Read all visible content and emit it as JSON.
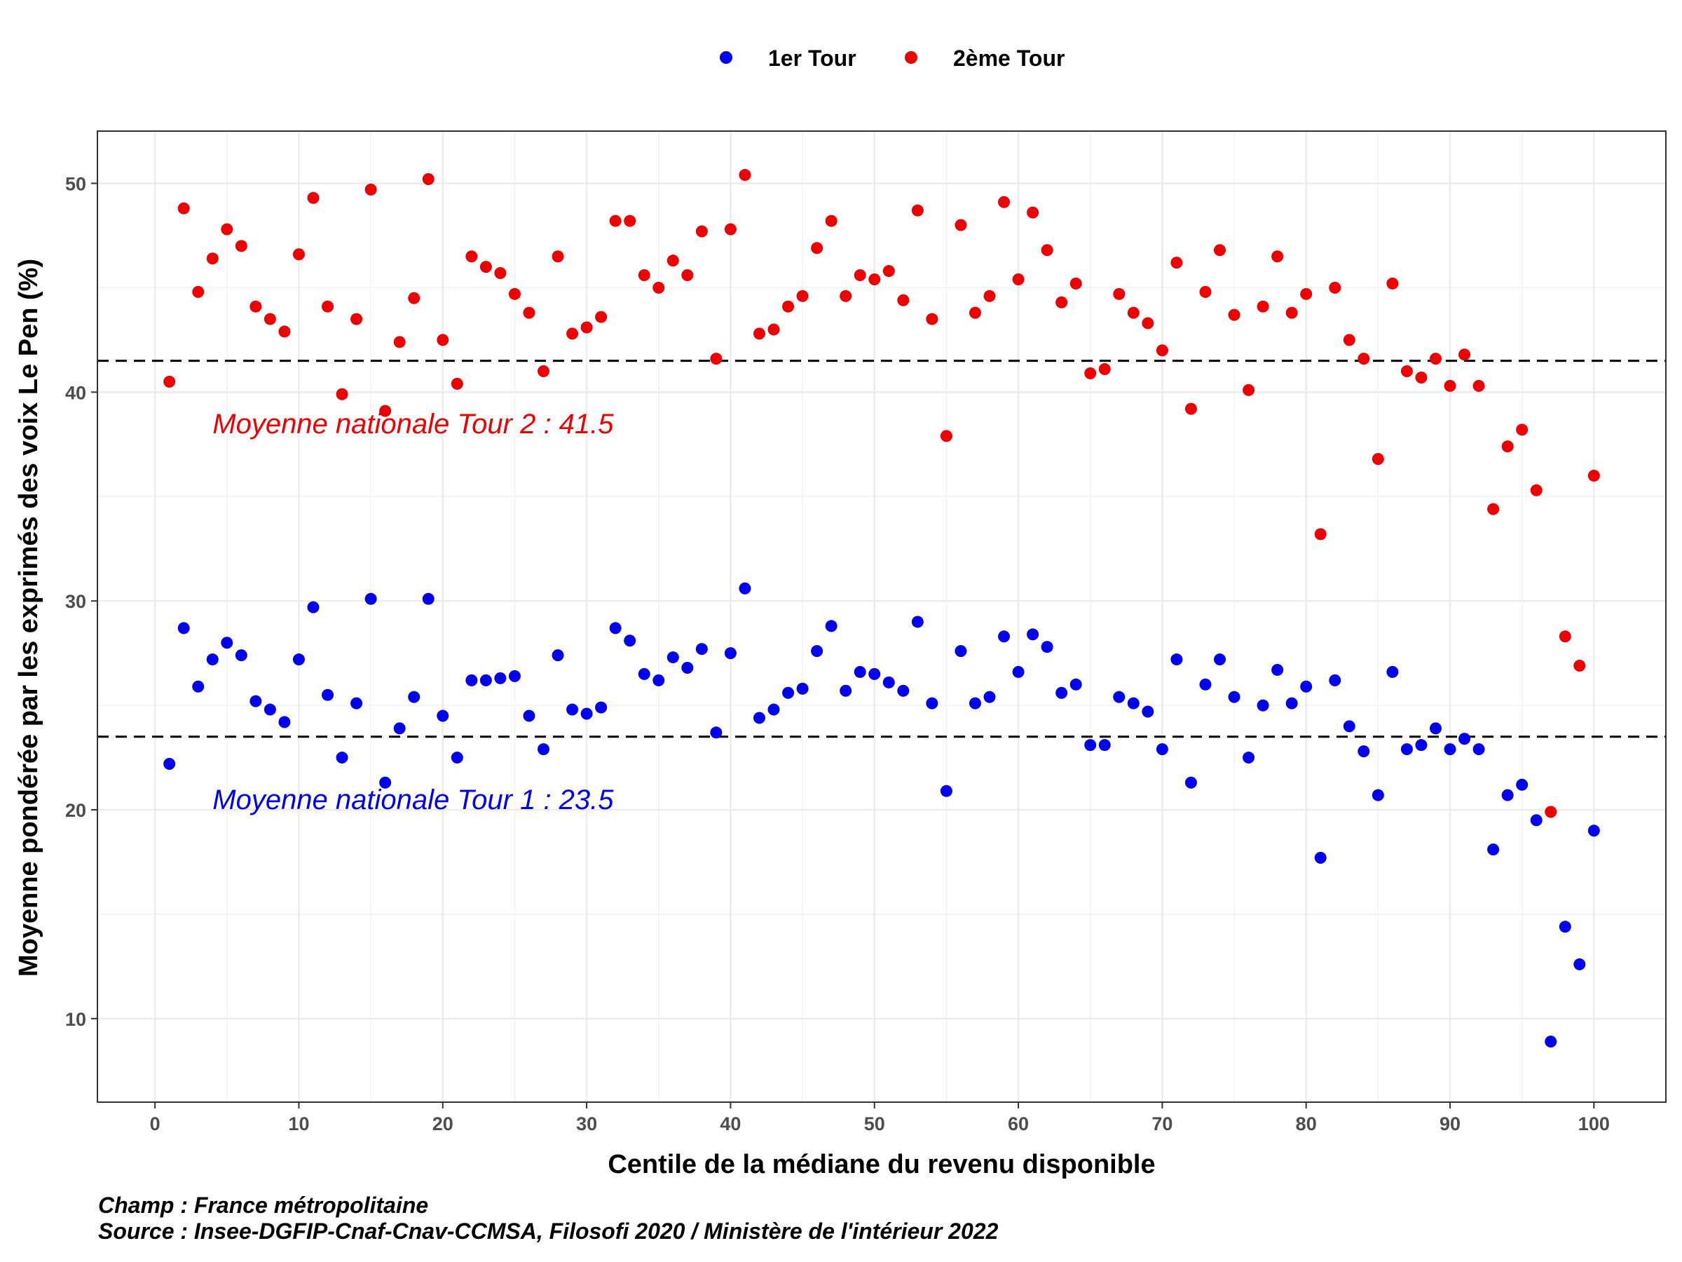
{
  "chart_data": {
    "type": "scatter",
    "xlabel": "Centile de la médiane du revenu disponible",
    "ylabel": "Moyenne pondérée par les exprimés des voix Le Pen (%)",
    "xlim": [
      -4,
      105
    ],
    "ylim": [
      6,
      52.5
    ],
    "x_ticks": [
      0,
      10,
      20,
      30,
      40,
      50,
      60,
      70,
      80,
      90,
      100
    ],
    "y_ticks": [
      10,
      20,
      30,
      40,
      50
    ],
    "grid": true,
    "legend_position": "top",
    "series": [
      {
        "name": "1er Tour",
        "color": "#0000ee",
        "x": [
          1,
          2,
          3,
          4,
          5,
          6,
          7,
          8,
          9,
          10,
          11,
          12,
          13,
          14,
          15,
          16,
          17,
          18,
          19,
          20,
          21,
          22,
          23,
          24,
          25,
          26,
          27,
          28,
          29,
          30,
          31,
          32,
          33,
          34,
          35,
          36,
          37,
          38,
          39,
          40,
          41,
          42,
          43,
          44,
          45,
          46,
          47,
          48,
          49,
          50,
          51,
          52,
          53,
          54,
          55,
          56,
          57,
          58,
          59,
          60,
          61,
          62,
          63,
          64,
          65,
          66,
          67,
          68,
          69,
          70,
          71,
          72,
          73,
          74,
          75,
          76,
          77,
          78,
          79,
          80,
          81,
          82,
          83,
          84,
          85,
          86,
          87,
          88,
          89,
          90,
          91,
          92,
          93,
          94,
          95,
          96,
          97,
          98,
          99,
          100
        ],
        "y": [
          22.2,
          28.7,
          25.9,
          27.2,
          28.0,
          27.4,
          25.2,
          24.8,
          24.2,
          27.2,
          29.7,
          25.5,
          22.5,
          25.1,
          30.1,
          21.3,
          23.9,
          25.4,
          30.1,
          24.5,
          22.5,
          26.2,
          26.2,
          26.3,
          26.4,
          24.5,
          22.9,
          27.4,
          24.8,
          24.6,
          24.9,
          28.7,
          28.1,
          26.5,
          26.2,
          27.3,
          26.8,
          27.7,
          23.7,
          27.5,
          30.6,
          24.4,
          24.8,
          25.6,
          25.8,
          27.6,
          28.8,
          25.7,
          26.6,
          26.5,
          26.1,
          25.7,
          29.0,
          25.1,
          20.9,
          27.6,
          25.1,
          25.4,
          28.3,
          26.6,
          28.4,
          27.8,
          25.6,
          26.0,
          23.1,
          23.1,
          25.4,
          25.1,
          24.7,
          22.9,
          27.2,
          21.3,
          26.0,
          27.2,
          25.4,
          22.5,
          25.0,
          26.7,
          25.1,
          25.9,
          17.7,
          26.2,
          24.0,
          22.8,
          20.7,
          26.6,
          22.9,
          23.1,
          23.9,
          22.9,
          23.4,
          22.9,
          18.1,
          20.7,
          21.2,
          19.5,
          8.9,
          14.4,
          12.6,
          19.0
        ]
      },
      {
        "name": "2ème Tour",
        "color": "#ee0000",
        "x": [
          1,
          2,
          3,
          4,
          5,
          6,
          7,
          8,
          9,
          10,
          11,
          12,
          13,
          14,
          15,
          16,
          17,
          18,
          19,
          20,
          21,
          22,
          23,
          24,
          25,
          26,
          27,
          28,
          29,
          30,
          31,
          32,
          33,
          34,
          35,
          36,
          37,
          38,
          39,
          40,
          41,
          42,
          43,
          44,
          45,
          46,
          47,
          48,
          49,
          50,
          51,
          52,
          53,
          54,
          55,
          56,
          57,
          58,
          59,
          60,
          61,
          62,
          63,
          64,
          65,
          66,
          67,
          68,
          69,
          70,
          71,
          72,
          73,
          74,
          75,
          76,
          77,
          78,
          79,
          80,
          81,
          82,
          83,
          84,
          85,
          86,
          87,
          88,
          89,
          90,
          91,
          92,
          93,
          94,
          95,
          96,
          97,
          98,
          99,
          100
        ],
        "y": [
          40.5,
          48.8,
          44.8,
          46.4,
          47.8,
          47.0,
          44.1,
          43.5,
          42.9,
          46.6,
          49.3,
          44.1,
          39.9,
          43.5,
          49.7,
          39.1,
          42.4,
          44.5,
          50.2,
          42.5,
          40.4,
          46.5,
          46.0,
          45.7,
          44.7,
          43.8,
          41.0,
          46.5,
          42.8,
          43.1,
          43.6,
          48.2,
          48.2,
          45.6,
          45.0,
          46.3,
          45.6,
          47.7,
          41.6,
          47.8,
          50.4,
          42.8,
          43.0,
          44.1,
          44.6,
          46.9,
          48.2,
          44.6,
          45.6,
          45.4,
          45.8,
          44.4,
          48.7,
          43.5,
          37.9,
          48.0,
          43.8,
          44.6,
          49.1,
          45.4,
          48.6,
          46.8,
          44.3,
          45.2,
          40.9,
          41.1,
          44.7,
          43.8,
          43.3,
          42.0,
          46.2,
          39.2,
          44.8,
          46.8,
          43.7,
          40.1,
          44.1,
          46.5,
          43.8,
          44.7,
          33.2,
          45.0,
          42.5,
          41.6,
          36.8,
          45.2,
          41.0,
          40.7,
          41.6,
          40.3,
          41.8,
          40.3,
          34.4,
          37.4,
          38.2,
          35.3,
          19.9,
          28.3,
          26.9,
          36.0
        ]
      }
    ],
    "reference_lines": [
      {
        "y": 41.5,
        "label": "Moyenne nationale Tour 2 : 41.5",
        "color": "#ee0000",
        "label_x": 4,
        "label_y": 38.5
      },
      {
        "y": 23.5,
        "label": "Moyenne nationale Tour 1 : 23.5",
        "color": "#0000ee",
        "label_x": 4,
        "label_y": 20.5
      }
    ]
  },
  "caption": {
    "line1": "Champ : France métropolitaine",
    "line2": "Source : Insee-DGFIP-Cnaf-Cnav-CCMSA, Filosofi 2020 / Ministère de l'intérieur 2022"
  }
}
